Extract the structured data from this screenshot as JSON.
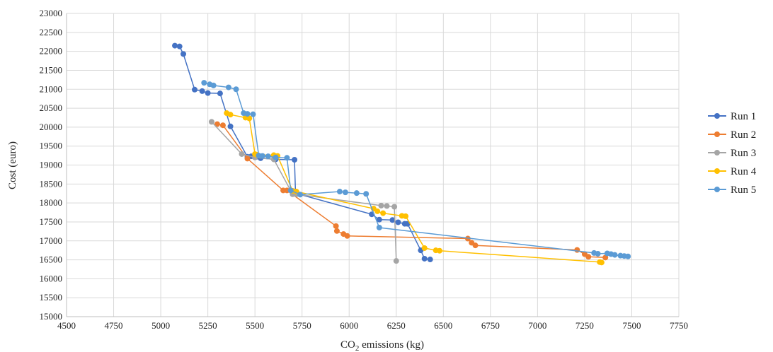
{
  "chart_data": {
    "type": "scatter",
    "xlabel": "CO",
    "xlabel_sub": "2",
    "xlabel_suffix": " emissions (kg)",
    "ylabel": "Cost  (euro)",
    "xlim": [
      4500,
      7750
    ],
    "ylim": [
      15000,
      23000
    ],
    "xticks": [
      4500,
      4750,
      5000,
      5250,
      5500,
      5750,
      6000,
      6250,
      6500,
      6750,
      7000,
      7250,
      7500,
      7750
    ],
    "yticks": [
      15000,
      15500,
      16000,
      16500,
      17000,
      17500,
      18000,
      18500,
      19000,
      19500,
      20000,
      20500,
      21000,
      21500,
      22000,
      22500,
      23000
    ],
    "grid": true,
    "legend": "right",
    "series": [
      {
        "name": "Run 1",
        "color": "#4472c4",
        "points": [
          [
            5075,
            22150
          ],
          [
            5100,
            22130
          ],
          [
            5120,
            21930
          ],
          [
            5180,
            20990
          ],
          [
            5220,
            20950
          ],
          [
            5250,
            20900
          ],
          [
            5315,
            20890
          ],
          [
            5370,
            20020
          ],
          [
            5460,
            19220
          ],
          [
            5480,
            19230
          ],
          [
            5510,
            19220
          ],
          [
            5530,
            19180
          ],
          [
            5610,
            19150
          ],
          [
            5710,
            19140
          ],
          [
            5715,
            18300
          ],
          [
            5720,
            18250
          ],
          [
            6120,
            17700
          ],
          [
            6160,
            17560
          ],
          [
            6230,
            17550
          ],
          [
            6260,
            17490
          ],
          [
            6295,
            17450
          ],
          [
            6310,
            17450
          ],
          [
            6380,
            16750
          ],
          [
            6400,
            16530
          ],
          [
            6430,
            16510
          ]
        ]
      },
      {
        "name": "Run 2",
        "color": "#ed7d31",
        "points": [
          [
            5300,
            20080
          ],
          [
            5330,
            20050
          ],
          [
            5460,
            19170
          ],
          [
            5650,
            18330
          ],
          [
            5670,
            18330
          ],
          [
            5930,
            17390
          ],
          [
            5935,
            17260
          ],
          [
            5970,
            17180
          ],
          [
            5990,
            17130
          ],
          [
            6630,
            17060
          ],
          [
            6650,
            16950
          ],
          [
            6670,
            16880
          ],
          [
            7210,
            16760
          ],
          [
            7250,
            16650
          ],
          [
            7270,
            16580
          ],
          [
            7360,
            16560
          ]
        ]
      },
      {
        "name": "Run 3",
        "color": "#a5a5a5",
        "points": [
          [
            5270,
            20140
          ],
          [
            5430,
            19290
          ],
          [
            5500,
            19200
          ],
          [
            5600,
            19150
          ],
          [
            5700,
            18230
          ],
          [
            5720,
            18230
          ],
          [
            6170,
            17930
          ],
          [
            6200,
            17920
          ],
          [
            6240,
            17900
          ],
          [
            6250,
            16470
          ]
        ]
      },
      {
        "name": "Run 4",
        "color": "#ffc000",
        "points": [
          [
            5350,
            20370
          ],
          [
            5370,
            20330
          ],
          [
            5450,
            20250
          ],
          [
            5470,
            20230
          ],
          [
            5500,
            19290
          ],
          [
            5510,
            19270
          ],
          [
            5600,
            19260
          ],
          [
            5620,
            19240
          ],
          [
            5700,
            18320
          ],
          [
            5720,
            18300
          ],
          [
            6130,
            17850
          ],
          [
            6150,
            17780
          ],
          [
            6180,
            17730
          ],
          [
            6280,
            17660
          ],
          [
            6300,
            17650
          ],
          [
            6400,
            16810
          ],
          [
            6460,
            16750
          ],
          [
            6480,
            16740
          ],
          [
            7330,
            16440
          ],
          [
            7340,
            16430
          ]
        ]
      },
      {
        "name": "Run 5",
        "color": "#5b9bd5",
        "points": [
          [
            5230,
            21170
          ],
          [
            5260,
            21130
          ],
          [
            5280,
            21100
          ],
          [
            5360,
            21050
          ],
          [
            5400,
            21000
          ],
          [
            5440,
            20370
          ],
          [
            5460,
            20350
          ],
          [
            5490,
            20340
          ],
          [
            5520,
            19250
          ],
          [
            5540,
            19240
          ],
          [
            5570,
            19230
          ],
          [
            5610,
            19200
          ],
          [
            5670,
            19190
          ],
          [
            5690,
            18330
          ],
          [
            5740,
            18220
          ],
          [
            5950,
            18300
          ],
          [
            5980,
            18280
          ],
          [
            6040,
            18260
          ],
          [
            6090,
            18240
          ],
          [
            6160,
            17350
          ],
          [
            7300,
            16680
          ],
          [
            7320,
            16660
          ],
          [
            7370,
            16670
          ],
          [
            7390,
            16650
          ],
          [
            7410,
            16630
          ],
          [
            7440,
            16610
          ],
          [
            7460,
            16600
          ],
          [
            7480,
            16590
          ]
        ]
      }
    ]
  }
}
